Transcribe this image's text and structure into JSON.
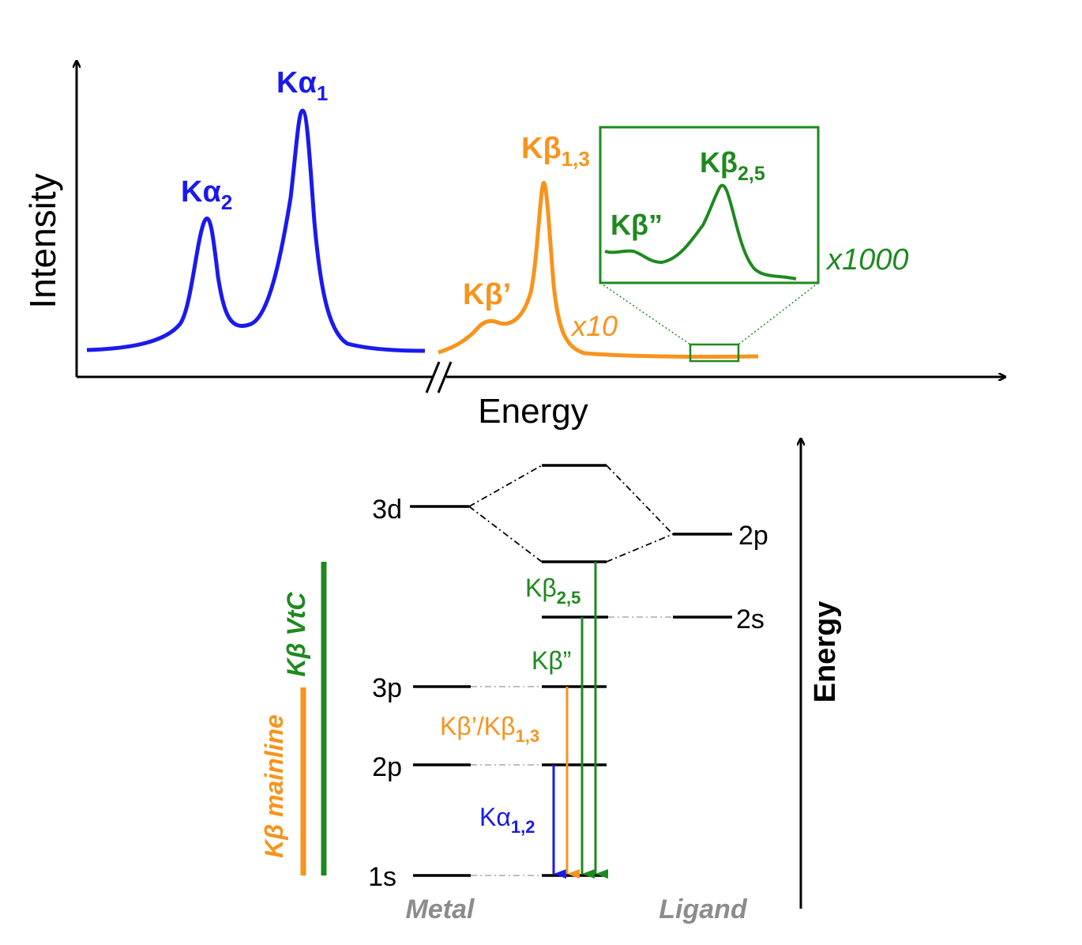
{
  "colors": {
    "alpha": "#1a1aee",
    "mainline": "#f7941d",
    "vtc": "#1e8a1e",
    "axis": "#000000",
    "caption_gray": "#8c8c8c",
    "levels": "#000000"
  },
  "spectrum": {
    "y_axis_label": "Intensity",
    "x_axis_label": "Energy",
    "peaks": {
      "ka1": {
        "base": "Kα",
        "sub": "1"
      },
      "ka2": {
        "base": "Kα",
        "sub": "2"
      },
      "kb13": {
        "base": "Kβ",
        "sub": "1,3"
      },
      "kbprime": {
        "text": "Kβ’"
      },
      "kb25": {
        "base": "Kβ",
        "sub": "2,5"
      },
      "kbdouble": {
        "text": "Kβ”"
      }
    },
    "scale_x10": "x10",
    "scale_x1000": "x1000"
  },
  "levels_diagram": {
    "axis_label": "Energy",
    "metal_levels": [
      "3d",
      "3p",
      "2p",
      "1s"
    ],
    "ligand_levels": [
      "2p",
      "2s"
    ],
    "transitions": {
      "kb25": {
        "base": "Kβ",
        "sub": "2,5"
      },
      "kbdouble": {
        "text": "Kβ”"
      },
      "kbmain": {
        "base": "Kβ’/Kβ",
        "sub": "1,3"
      },
      "ka12": {
        "base": "Kα",
        "sub": "1,2"
      }
    },
    "bracket_mainline": "Kβ mainline",
    "bracket_vtc": "Kβ VtC",
    "caption_metal": "Metal",
    "caption_ligand": "Ligand"
  }
}
